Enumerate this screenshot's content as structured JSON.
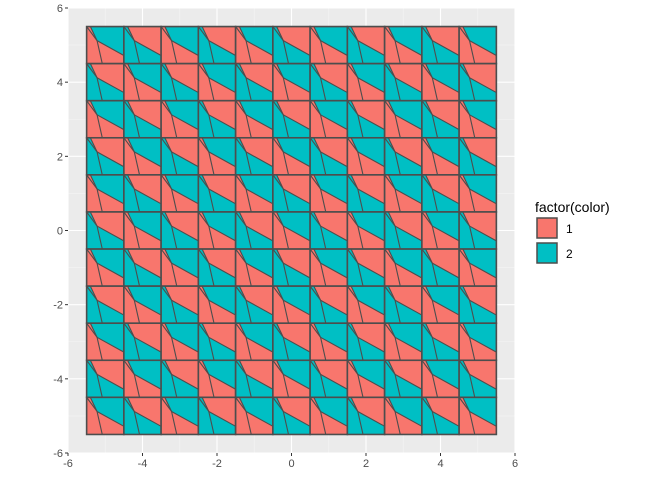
{
  "chart_data": {
    "type": "polygon-tile",
    "title": "",
    "xlabel": "",
    "ylabel": "",
    "xlim": [
      -6,
      6
    ],
    "ylim": [
      -6,
      6
    ],
    "x_ticks": [
      -6,
      -4,
      -2,
      0,
      2,
      4,
      6
    ],
    "y_ticks": [
      -6,
      -4,
      -2,
      0,
      2,
      4,
      6
    ],
    "x_tick_labels": [
      "-6",
      "-4",
      "-2",
      "0",
      "2",
      "4",
      "6"
    ],
    "y_tick_labels": [
      "-6",
      "-4",
      "-2",
      "0",
      "2",
      "4",
      "6"
    ],
    "grid": true,
    "tile_grid": {
      "x_centers": [
        -5,
        -4,
        -3,
        -2,
        -1,
        0,
        1,
        2,
        3,
        4,
        5
      ],
      "y_centers": [
        5,
        4,
        3,
        2,
        1,
        0,
        -1,
        -2,
        -3,
        -4,
        -5
      ],
      "tile_size": 1,
      "tile_base_color": [
        [
          1,
          2,
          1,
          2,
          1,
          2,
          1,
          2,
          1,
          2,
          1
        ],
        [
          2,
          1,
          2,
          1,
          2,
          1,
          2,
          1,
          2,
          1,
          2
        ],
        [
          1,
          2,
          1,
          2,
          1,
          2,
          1,
          2,
          1,
          2,
          1
        ],
        [
          2,
          1,
          2,
          1,
          2,
          1,
          2,
          1,
          2,
          1,
          2
        ],
        [
          1,
          2,
          1,
          2,
          1,
          2,
          1,
          2,
          1,
          2,
          1
        ],
        [
          2,
          1,
          2,
          1,
          2,
          1,
          2,
          1,
          2,
          1,
          2
        ],
        [
          1,
          2,
          1,
          2,
          1,
          2,
          1,
          2,
          1,
          2,
          1
        ],
        [
          2,
          1,
          2,
          1,
          2,
          1,
          2,
          1,
          2,
          1,
          2
        ],
        [
          1,
          2,
          1,
          2,
          1,
          2,
          1,
          2,
          1,
          2,
          1
        ],
        [
          2,
          1,
          2,
          1,
          2,
          1,
          2,
          1,
          2,
          1,
          2
        ],
        [
          1,
          2,
          1,
          2,
          1,
          2,
          1,
          2,
          1,
          2,
          1
        ]
      ]
    },
    "legend": {
      "title": "factor(color)",
      "placement": "right",
      "items": [
        {
          "label": "1",
          "color": "#F8766D"
        },
        {
          "label": "2",
          "color": "#00BFC4"
        }
      ]
    },
    "colors": {
      "panel_background": "#EBEBEB",
      "grid_major": "#FFFFFF",
      "tile_outline": "#4D4D4D",
      "tick_text": "#4D4D4D"
    }
  }
}
